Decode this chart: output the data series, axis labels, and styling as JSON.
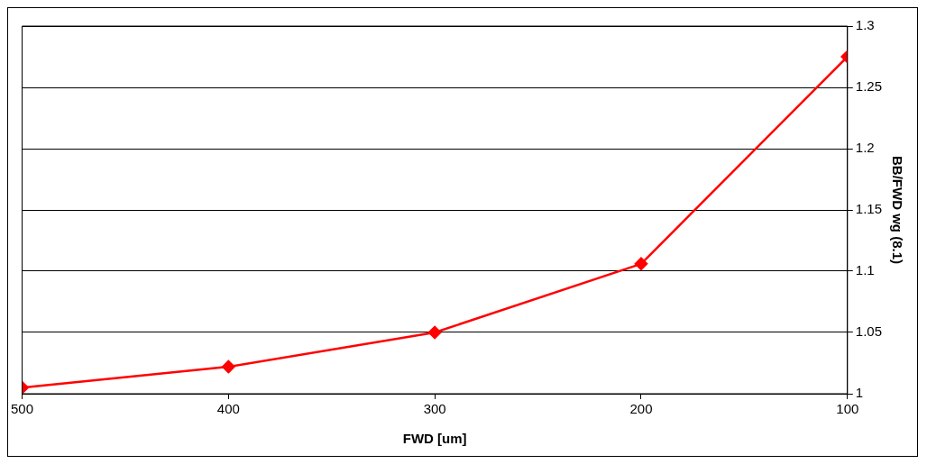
{
  "chart_data": {
    "type": "line",
    "xlabel": "FWD [um]",
    "ylabel": "BB/FWD wg (8.1)",
    "x": [
      500,
      400,
      300,
      200,
      100
    ],
    "series": [
      {
        "color": "#ff0000",
        "values": [
          1.005,
          1.022,
          1.05,
          1.106,
          1.275
        ]
      }
    ],
    "xlim": [
      500,
      100
    ],
    "xticks": [
      500,
      400,
      300,
      200,
      100
    ],
    "ylim": [
      1,
      1.3
    ],
    "yticks": [
      1,
      1.05,
      1.1,
      1.15,
      1.2,
      1.25,
      1.3
    ],
    "grid": "y",
    "marker": "diamond",
    "line_style": "solid",
    "legend": false
  }
}
